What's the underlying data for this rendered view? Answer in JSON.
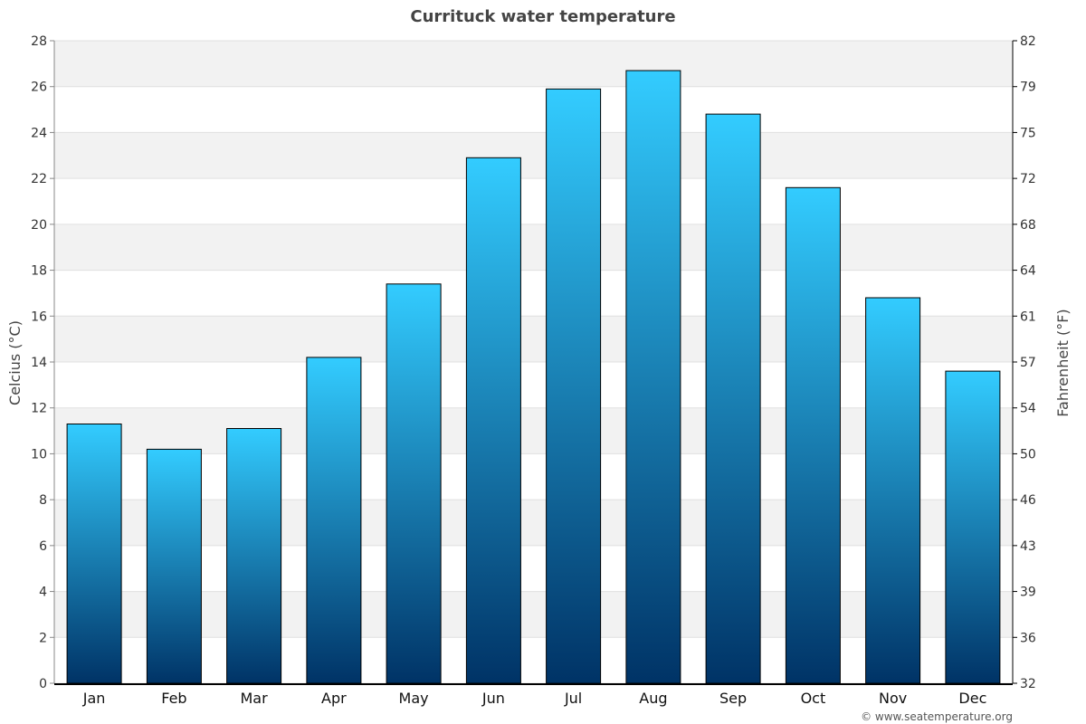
{
  "chart_data": {
    "type": "bar",
    "title": "Currituck water temperature",
    "ylabel": "Celcius (°C)",
    "y2label": "Fahrenheit (°F)",
    "categories": [
      "Jan",
      "Feb",
      "Mar",
      "Apr",
      "May",
      "Jun",
      "Jul",
      "Aug",
      "Sep",
      "Oct",
      "Nov",
      "Dec"
    ],
    "values": [
      11.3,
      10.2,
      11.1,
      14.2,
      17.4,
      22.9,
      25.9,
      26.7,
      24.8,
      21.6,
      16.8,
      13.6
    ],
    "ylim": [
      0,
      28
    ],
    "y_ticks": [
      "0",
      "2",
      "4",
      "6",
      "8",
      "10",
      "12",
      "14",
      "16",
      "18",
      "20",
      "22",
      "24",
      "26",
      "28"
    ],
    "y2_ticks": [
      "32",
      "36",
      "39",
      "43",
      "46",
      "50",
      "54",
      "57",
      "61",
      "64",
      "68",
      "72",
      "75",
      "79",
      "82"
    ],
    "grid": true,
    "colors": {
      "bar_top": "#33ccff",
      "bar_bottom": "#003366",
      "band": "#f2f2f2",
      "border": "#000000"
    }
  },
  "credit": "© www.seatemperature.org"
}
